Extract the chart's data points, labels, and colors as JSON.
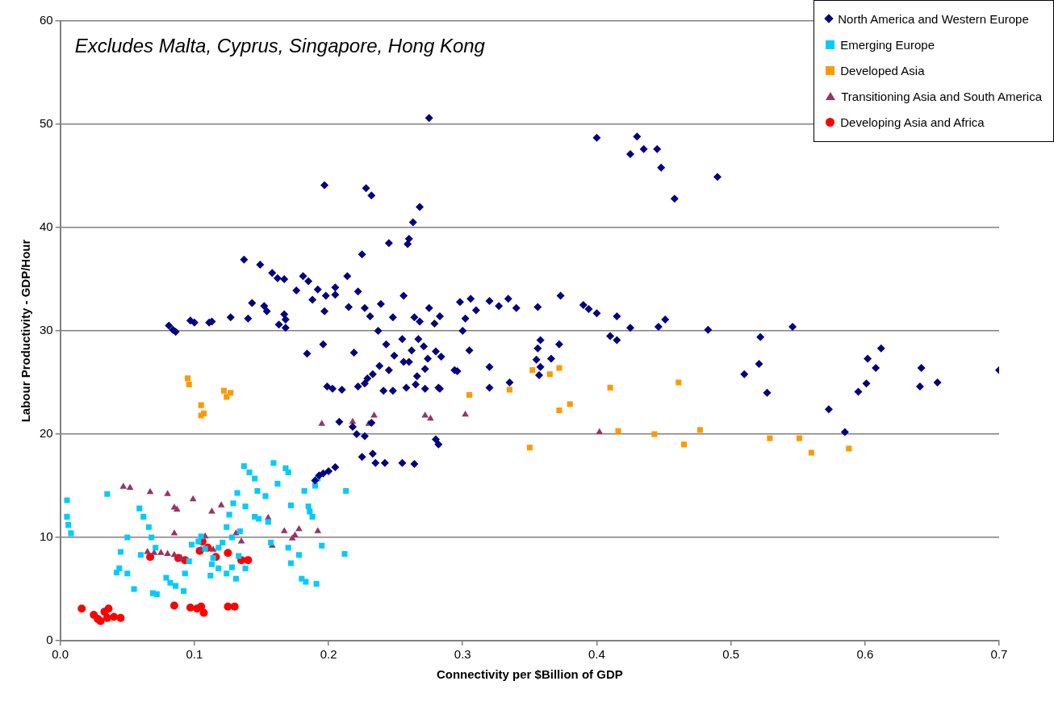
{
  "chart_data": {
    "type": "scatter",
    "xlabel": "Connectivity per $Billion of GDP",
    "ylabel": "Labour Productivity - GDP/Hour",
    "annotations": [
      "Excludes Malta, Cyprus, Singapore, Hong Kong"
    ],
    "xlim": [
      0,
      0.7
    ],
    "xticks": [
      {
        "value": 0,
        "label": "0.0"
      },
      0.1,
      0.2,
      0.3,
      0.4,
      0.5,
      0.6,
      0.7
    ],
    "ylim": [
      0,
      60
    ],
    "yticks": [
      0,
      10,
      20,
      30,
      40,
      50,
      60
    ],
    "grid": "y",
    "legend": "top right",
    "series": [
      {
        "name": "North America and Western Europe",
        "color": "#000080",
        "marker": "diamond",
        "x": [
          0.275,
          0.4,
          0.43,
          0.435,
          0.425,
          0.445,
          0.448,
          0.458,
          0.49,
          0.197,
          0.228,
          0.232,
          0.268,
          0.263,
          0.26,
          0.259,
          0.245,
          0.225,
          0.137,
          0.149,
          0.158,
          0.162,
          0.167,
          0.185,
          0.181,
          0.192,
          0.176,
          0.198,
          0.205,
          0.205,
          0.188,
          0.214,
          0.222,
          0.143,
          0.152,
          0.154,
          0.167,
          0.168,
          0.163,
          0.14,
          0.127,
          0.113,
          0.111,
          0.097,
          0.1,
          0.081,
          0.084,
          0.086,
          0.168,
          0.197,
          0.196,
          0.184,
          0.219,
          0.215,
          0.227,
          0.231,
          0.239,
          0.237,
          0.248,
          0.255,
          0.256,
          0.279,
          0.275,
          0.264,
          0.268,
          0.298,
          0.306,
          0.32,
          0.327,
          0.334,
          0.34,
          0.31,
          0.302,
          0.356,
          0.373,
          0.39,
          0.394,
          0.4,
          0.415,
          0.425,
          0.446,
          0.451,
          0.41,
          0.415,
          0.483,
          0.522,
          0.546,
          0.358,
          0.356,
          0.372,
          0.366,
          0.355,
          0.358,
          0.357,
          0.51,
          0.521,
          0.527,
          0.573,
          0.585,
          0.595,
          0.601,
          0.602,
          0.608,
          0.612,
          0.641,
          0.642,
          0.654,
          0.7,
          0.199,
          0.203,
          0.21,
          0.222,
          0.227,
          0.229,
          0.233,
          0.208,
          0.218,
          0.221,
          0.227,
          0.232,
          0.225,
          0.233,
          0.235,
          0.242,
          0.255,
          0.264,
          0.241,
          0.248,
          0.258,
          0.265,
          0.272,
          0.282,
          0.266,
          0.272,
          0.243,
          0.249,
          0.238,
          0.245,
          0.256,
          0.26,
          0.274,
          0.28,
          0.262,
          0.267,
          0.271,
          0.284,
          0.294,
          0.296,
          0.283,
          0.28,
          0.282,
          0.305,
          0.32,
          0.32,
          0.335,
          0.3,
          0.283,
          0.19,
          0.193,
          0.196,
          0.2,
          0.205
        ],
        "values": [
          50.6,
          48.7,
          48.8,
          47.6,
          47.1,
          47.6,
          45.8,
          42.8,
          44.9,
          44.1,
          43.8,
          43.1,
          42.0,
          40.5,
          38.9,
          38.4,
          38.5,
          37.4,
          36.9,
          36.4,
          35.6,
          35.1,
          35.0,
          34.8,
          35.3,
          34.0,
          33.9,
          33.4,
          34.2,
          33.5,
          33.0,
          35.3,
          33.8,
          32.7,
          32.4,
          31.9,
          31.6,
          31.1,
          30.6,
          31.2,
          31.3,
          30.9,
          30.8,
          31.0,
          30.8,
          30.5,
          30.1,
          29.9,
          30.3,
          31.9,
          28.7,
          27.8,
          27.9,
          32.3,
          32.2,
          31.4,
          32.6,
          30.0,
          31.3,
          29.2,
          33.4,
          30.7,
          32.2,
          31.3,
          30.9,
          32.8,
          33.1,
          32.9,
          32.4,
          33.1,
          32.2,
          32.0,
          31.2,
          32.3,
          33.4,
          32.5,
          32.1,
          31.7,
          31.4,
          30.3,
          30.4,
          31.1,
          29.5,
          29.1,
          30.1,
          29.4,
          30.4,
          29.1,
          28.3,
          28.7,
          27.3,
          27.2,
          26.5,
          25.7,
          25.8,
          26.8,
          24.0,
          22.4,
          20.2,
          24.1,
          24.9,
          27.3,
          26.4,
          28.3,
          24.6,
          26.4,
          25.0,
          26.2,
          24.6,
          24.4,
          24.3,
          24.6,
          24.9,
          25.4,
          25.8,
          21.2,
          20.7,
          20.0,
          19.8,
          21.1,
          17.8,
          18.1,
          17.2,
          17.2,
          17.2,
          17.1,
          24.2,
          24.2,
          24.5,
          24.8,
          24.4,
          24.5,
          25.6,
          26.3,
          28.7,
          27.6,
          26.6,
          26.2,
          27.0,
          27.0,
          27.3,
          28.0,
          28.1,
          29.2,
          28.5,
          27.5,
          26.2,
          26.1,
          24.4,
          19.5,
          19.0,
          28.1,
          26.5,
          24.5,
          25.0,
          30.0,
          31.4,
          15.5,
          16.0,
          16.2,
          16.4,
          16.8
        ]
      },
      {
        "name": "Emerging Europe",
        "color": "#00ccff",
        "marker": "square",
        "x": [
          0.005,
          0.005,
          0.006,
          0.008,
          0.035,
          0.05,
          0.059,
          0.062,
          0.066,
          0.068,
          0.071,
          0.06,
          0.045,
          0.044,
          0.042,
          0.05,
          0.055,
          0.069,
          0.072,
          0.082,
          0.086,
          0.092,
          0.079,
          0.093,
          0.096,
          0.098,
          0.103,
          0.105,
          0.108,
          0.112,
          0.113,
          0.114,
          0.118,
          0.124,
          0.128,
          0.131,
          0.118,
          0.121,
          0.124,
          0.126,
          0.129,
          0.132,
          0.134,
          0.128,
          0.137,
          0.141,
          0.145,
          0.147,
          0.153,
          0.159,
          0.162,
          0.168,
          0.17,
          0.172,
          0.17,
          0.155,
          0.148,
          0.138,
          0.145,
          0.172,
          0.178,
          0.182,
          0.185,
          0.186,
          0.188,
          0.19,
          0.192,
          0.195,
          0.213,
          0.212,
          0.18,
          0.183,
          0.191,
          0.138,
          0.157,
          0.133
        ],
        "values": [
          13.6,
          12.0,
          11.2,
          10.4,
          14.2,
          10.0,
          12.8,
          12.0,
          11.0,
          10.0,
          9.0,
          8.3,
          8.6,
          7.0,
          6.6,
          6.5,
          5.0,
          4.6,
          4.5,
          5.6,
          5.3,
          4.8,
          6.1,
          6.5,
          7.7,
          9.3,
          9.6,
          10.1,
          8.9,
          6.3,
          7.4,
          8.0,
          7.0,
          6.5,
          7.1,
          6.0,
          9.0,
          9.5,
          11.0,
          12.2,
          13.3,
          14.3,
          10.6,
          10.0,
          16.9,
          16.3,
          15.7,
          14.5,
          14.0,
          17.2,
          15.2,
          16.7,
          16.3,
          13.1,
          9.0,
          11.5,
          11.8,
          13.0,
          12.0,
          7.5,
          8.3,
          14.5,
          13.0,
          12.5,
          12.0,
          15.0,
          15.7,
          9.2,
          14.5,
          8.4,
          6.0,
          5.7,
          5.5,
          7.0,
          9.5,
          8.2
        ]
      },
      {
        "name": "Developed Asia",
        "color": "#ff9900",
        "marker": "square",
        "x": [
          0.095,
          0.096,
          0.105,
          0.107,
          0.105,
          0.122,
          0.124,
          0.127,
          0.305,
          0.335,
          0.352,
          0.35,
          0.365,
          0.372,
          0.372,
          0.38,
          0.41,
          0.416,
          0.443,
          0.461,
          0.465,
          0.477,
          0.529,
          0.551,
          0.56,
          0.588
        ],
        "values": [
          25.4,
          24.8,
          22.8,
          22.0,
          21.8,
          24.2,
          23.6,
          24.0,
          23.8,
          24.3,
          26.2,
          18.7,
          25.8,
          26.4,
          22.3,
          22.9,
          24.5,
          20.3,
          20.0,
          25.0,
          19.0,
          20.4,
          19.6,
          19.6,
          18.2,
          18.6
        ]
      },
      {
        "name": "Transitioning Asia and South America",
        "color": "#993366",
        "marker": "triangle",
        "x": [
          0.047,
          0.052,
          0.067,
          0.08,
          0.085,
          0.087,
          0.099,
          0.113,
          0.12,
          0.131,
          0.155,
          0.178,
          0.173,
          0.158,
          0.135,
          0.108,
          0.105,
          0.085,
          0.065,
          0.07,
          0.075,
          0.08,
          0.085,
          0.09,
          0.114,
          0.167,
          0.175,
          0.192,
          0.195,
          0.218,
          0.23,
          0.234,
          0.272,
          0.276,
          0.302,
          0.402
        ],
        "values": [
          14.9,
          14.8,
          14.4,
          14.2,
          12.9,
          12.7,
          13.7,
          12.5,
          13.1,
          10.4,
          11.9,
          10.8,
          9.9,
          9.2,
          9.6,
          10.1,
          8.8,
          10.4,
          8.6,
          8.5,
          8.5,
          8.4,
          8.3,
          8.0,
          8.8,
          10.6,
          10.2,
          10.6,
          21.0,
          21.2,
          21.0,
          21.8,
          21.8,
          21.5,
          21.9,
          20.2
        ]
      },
      {
        "name": "Developing Asia and Africa",
        "color": "#ff0000",
        "marker": "circle",
        "x": [
          0.016,
          0.025,
          0.028,
          0.03,
          0.035,
          0.036,
          0.04,
          0.045,
          0.033,
          0.085,
          0.097,
          0.102,
          0.105,
          0.107,
          0.125,
          0.13,
          0.067,
          0.088,
          0.093,
          0.104,
          0.106,
          0.11,
          0.116,
          0.125,
          0.135,
          0.14
        ],
        "values": [
          3.1,
          2.5,
          2.1,
          1.9,
          2.2,
          3.1,
          2.3,
          2.2,
          2.8,
          3.4,
          3.2,
          3.1,
          3.3,
          2.7,
          3.3,
          3.3,
          8.1,
          8.0,
          7.8,
          8.7,
          9.6,
          9.0,
          8.1,
          8.5,
          7.8,
          7.8
        ]
      }
    ]
  }
}
